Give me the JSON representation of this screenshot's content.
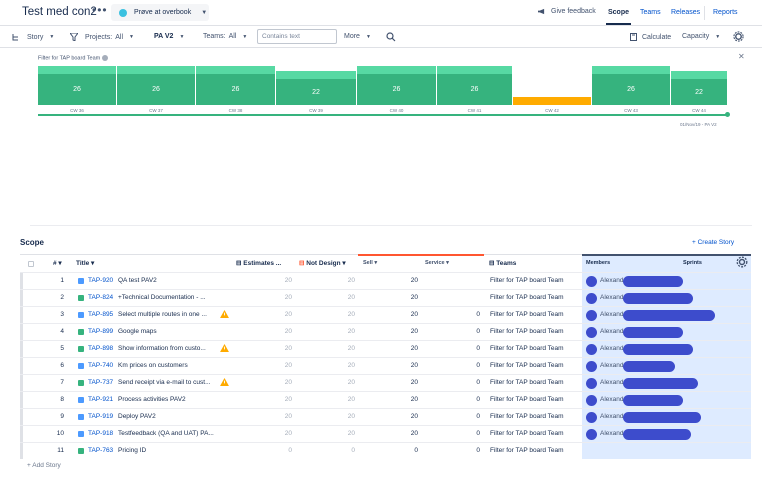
{
  "header": {
    "title": "Test med con2",
    "more_icon": "ellipsis-icon",
    "scenario": "Prøve at overbook",
    "feedback": "Give feedback",
    "tabs": [
      {
        "label": "Scope",
        "active": true
      },
      {
        "label": "Teams",
        "active": false
      },
      {
        "label": "Releases",
        "active": false
      },
      {
        "label": "Reports",
        "active": false
      }
    ]
  },
  "toolbar": {
    "story": "Story",
    "projects_label": "Projects:",
    "projects_value": "All",
    "pa": "PA V2",
    "teams_label": "Teams:",
    "teams_value": "All",
    "search_placeholder": "Contains text",
    "more": "More",
    "calculate": "Calculate",
    "capacity": "Capacity"
  },
  "capacity": {
    "filter_label": "Filter for TAP board Team",
    "colors": {
      "normal": "#36b37e",
      "light": "#57d9a3",
      "over": "#ffab00"
    },
    "sprints": [
      {
        "label": "CW 36",
        "value": "26",
        "fill": 1.0
      },
      {
        "label": "CW 37",
        "value": "26",
        "fill": 1.0
      },
      {
        "label": "CW 38",
        "value": "26",
        "fill": 1.0
      },
      {
        "label": "CW 39",
        "value": "22",
        "fill": 0.85
      },
      {
        "label": "CW 40",
        "value": "26",
        "fill": 1.0
      },
      {
        "label": "CW 41",
        "value": "26",
        "fill": 1.0
      },
      {
        "label": "CW 42",
        "value": "",
        "fill": 0.2
      },
      {
        "label": "CW 43",
        "value": "26",
        "fill": 1.0
      },
      {
        "label": "CW 44",
        "value": "22",
        "fill": 0.85
      }
    ],
    "timeline_label": "01/Nov/19 - PA V2"
  },
  "scope": {
    "title": "Scope",
    "create_story": "+ Create Story",
    "add_story": "+ Add Story",
    "columns": {
      "hash": "#",
      "title": "Title",
      "estimates": "Estimates ...",
      "not_design": "Not Design",
      "sell": "Sell",
      "service": "Service",
      "teams": "Teams",
      "members": "Members",
      "sprints": "Sprints"
    },
    "rows": [
      {
        "n": "1",
        "key": "TAP-920",
        "title": "QA test PAV2",
        "warn": false,
        "est": "20",
        "nd": "20",
        "sell": "20",
        "service": "",
        "team": "Filter for TAP board Team",
        "member": "Alexande",
        "icon": "subtask"
      },
      {
        "n": "2",
        "key": "TAP-824",
        "title": "+Technical Documentation - ...",
        "warn": false,
        "est": "20",
        "nd": "20",
        "sell": "20",
        "service": "",
        "team": "Filter for TAP board Team",
        "member": "Alexande",
        "icon": "story"
      },
      {
        "n": "3",
        "key": "TAP-895",
        "title": "Select multiple routes in one ...",
        "warn": true,
        "est": "20",
        "nd": "20",
        "sell": "20",
        "service": "0",
        "team": "Filter for TAP board Team",
        "member": "Alexande",
        "icon": "subtask"
      },
      {
        "n": "4",
        "key": "TAP-899",
        "title": "Google maps",
        "warn": false,
        "est": "20",
        "nd": "20",
        "sell": "20",
        "service": "0",
        "team": "Filter for TAP board Team",
        "member": "Alexande",
        "icon": "story"
      },
      {
        "n": "5",
        "key": "TAP-898",
        "title": "Show information from custo...",
        "warn": true,
        "est": "20",
        "nd": "20",
        "sell": "20",
        "service": "0",
        "team": "Filter for TAP board Team",
        "member": "Alexande",
        "icon": "story"
      },
      {
        "n": "6",
        "key": "TAP-740",
        "title": "Km prices on customers",
        "warn": false,
        "est": "20",
        "nd": "20",
        "sell": "20",
        "service": "0",
        "team": "Filter for TAP board Team",
        "member": "Alexande",
        "icon": "subtask"
      },
      {
        "n": "7",
        "key": "TAP-737",
        "title": "Send receipt via e-mail to cust...",
        "warn": true,
        "est": "20",
        "nd": "20",
        "sell": "20",
        "service": "0",
        "team": "Filter for TAP board Team",
        "member": "Alexande",
        "icon": "story"
      },
      {
        "n": "8",
        "key": "TAP-921",
        "title": "Process activities PAV2",
        "warn": false,
        "est": "20",
        "nd": "20",
        "sell": "20",
        "service": "0",
        "team": "Filter for TAP board Team",
        "member": "Alexande",
        "icon": "subtask"
      },
      {
        "n": "9",
        "key": "TAP-919",
        "title": "Deploy PAV2",
        "warn": false,
        "est": "20",
        "nd": "20",
        "sell": "20",
        "service": "0",
        "team": "Filter for TAP board Team",
        "member": "Alexande",
        "icon": "subtask"
      },
      {
        "n": "10",
        "key": "TAP-918",
        "title": "Testfeedback (QA and UAT) PA...",
        "warn": false,
        "est": "20",
        "nd": "20",
        "sell": "20",
        "service": "0",
        "team": "Filter for TAP board Team",
        "member": "Alexande",
        "icon": "subtask"
      },
      {
        "n": "11",
        "key": "TAP-763",
        "title": "Pricing ID",
        "warn": false,
        "est": "0",
        "nd": "0",
        "sell": "0",
        "service": "0",
        "team": "Filter for TAP board Team",
        "member": "",
        "icon": "story"
      }
    ]
  }
}
